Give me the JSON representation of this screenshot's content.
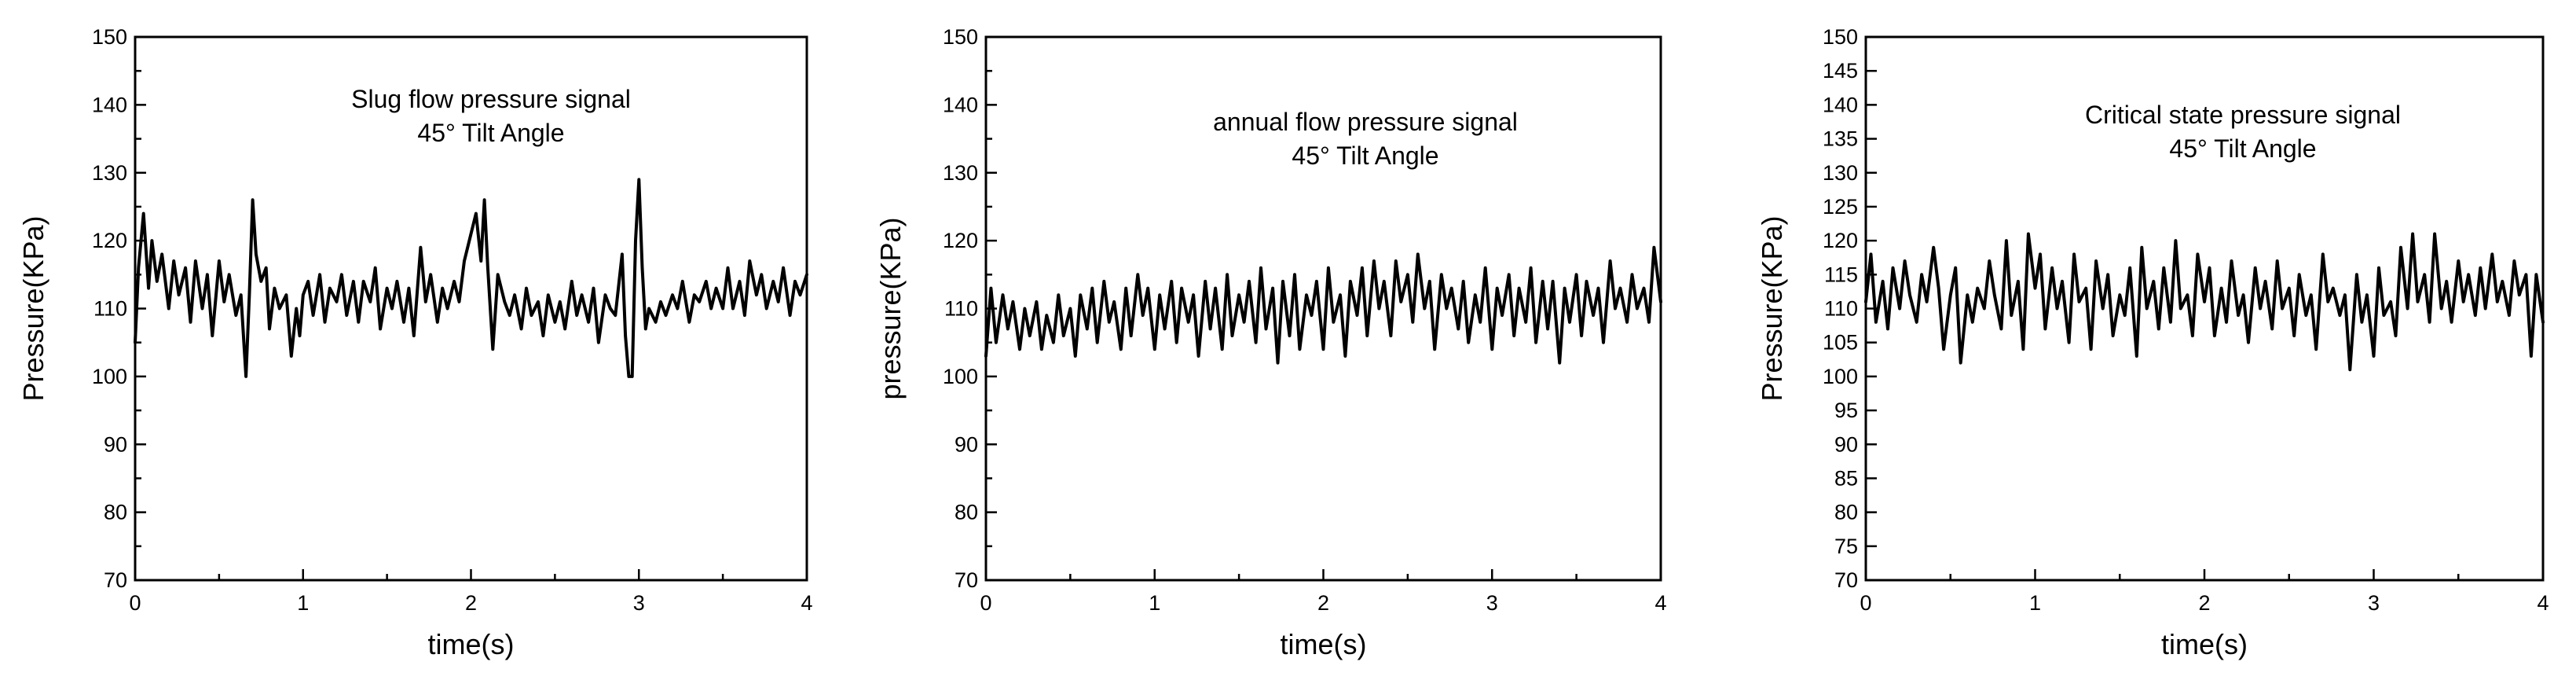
{
  "chart_data": [
    {
      "type": "line",
      "title": "",
      "annotations": [
        "Slug flow pressure signal",
        "45° Tilt Angle"
      ],
      "xlabel": "time(s)",
      "ylabel": "Pressure(KPa)",
      "xlim": [
        0,
        4
      ],
      "ylim": [
        70,
        150
      ],
      "x_ticks": [
        0,
        1,
        2,
        3,
        4
      ],
      "y_ticks": [
        70,
        80,
        90,
        100,
        110,
        120,
        130,
        140,
        150
      ],
      "grid": false,
      "series": [
        {
          "name": "Slug flow pressure signal",
          "x": [
            0,
            0.02,
            0.05,
            0.08,
            0.1,
            0.13,
            0.16,
            0.2,
            0.23,
            0.26,
            0.3,
            0.33,
            0.36,
            0.4,
            0.43,
            0.46,
            0.5,
            0.53,
            0.56,
            0.6,
            0.63,
            0.66,
            0.68,
            0.7,
            0.72,
            0.75,
            0.78,
            0.8,
            0.83,
            0.86,
            0.9,
            0.93,
            0.96,
            0.98,
            1.0,
            1.03,
            1.06,
            1.1,
            1.13,
            1.16,
            1.2,
            1.23,
            1.26,
            1.3,
            1.33,
            1.36,
            1.4,
            1.43,
            1.46,
            1.5,
            1.53,
            1.56,
            1.6,
            1.63,
            1.66,
            1.7,
            1.73,
            1.76,
            1.8,
            1.83,
            1.86,
            1.9,
            1.93,
            1.96,
            2.0,
            2.03,
            2.06,
            2.08,
            2.1,
            2.13,
            2.16,
            2.2,
            2.23,
            2.26,
            2.3,
            2.33,
            2.36,
            2.4,
            2.43,
            2.46,
            2.5,
            2.53,
            2.56,
            2.6,
            2.63,
            2.66,
            2.7,
            2.73,
            2.76,
            2.8,
            2.83,
            2.86,
            2.9,
            2.92,
            2.94,
            2.96,
            2.98,
            3.0,
            3.02,
            3.04,
            3.06,
            3.1,
            3.13,
            3.16,
            3.2,
            3.23,
            3.26,
            3.3,
            3.33,
            3.36,
            3.4,
            3.43,
            3.46,
            3.5,
            3.53,
            3.56,
            3.6,
            3.63,
            3.66,
            3.7,
            3.73,
            3.76,
            3.8,
            3.83,
            3.86,
            3.9,
            3.93,
            3.96,
            4.0
          ],
          "values": [
            105,
            116,
            124,
            113,
            120,
            114,
            118,
            110,
            117,
            112,
            116,
            108,
            117,
            110,
            115,
            106,
            117,
            111,
            115,
            109,
            112,
            100,
            112,
            126,
            118,
            114,
            116,
            107,
            113,
            110,
            112,
            103,
            110,
            106,
            112,
            114,
            109,
            115,
            108,
            113,
            111,
            115,
            109,
            114,
            108,
            114,
            111,
            116,
            107,
            113,
            110,
            114,
            108,
            113,
            106,
            119,
            111,
            115,
            108,
            113,
            110,
            114,
            111,
            117,
            121,
            124,
            117,
            126,
            116,
            104,
            115,
            111,
            109,
            112,
            107,
            113,
            109,
            111,
            106,
            112,
            108,
            111,
            107,
            114,
            109,
            112,
            108,
            113,
            105,
            112,
            110,
            109,
            118,
            106,
            100,
            100,
            120,
            129,
            116,
            107,
            110,
            108,
            111,
            109,
            112,
            110,
            114,
            108,
            112,
            111,
            114,
            110,
            113,
            110,
            116,
            110,
            114,
            109,
            117,
            112,
            115,
            110,
            114,
            111,
            116,
            109,
            114,
            112,
            115
          ],
          "color": "#000000"
        }
      ]
    },
    {
      "type": "line",
      "title": "",
      "annotations": [
        "annual flow pressure signal",
        "45° Tilt Angle"
      ],
      "xlabel": "time(s)",
      "ylabel": "pressure(KPa)",
      "xlim": [
        0,
        4
      ],
      "ylim": [
        70,
        150
      ],
      "x_ticks": [
        0,
        1,
        2,
        3,
        4
      ],
      "y_ticks": [
        70,
        80,
        90,
        100,
        110,
        120,
        130,
        140,
        150
      ],
      "grid": false,
      "series": [
        {
          "name": "annual flow pressure signal",
          "x": [
            0,
            0.03,
            0.06,
            0.1,
            0.13,
            0.16,
            0.2,
            0.23,
            0.26,
            0.3,
            0.33,
            0.36,
            0.4,
            0.43,
            0.46,
            0.5,
            0.53,
            0.56,
            0.6,
            0.63,
            0.66,
            0.7,
            0.73,
            0.76,
            0.8,
            0.83,
            0.86,
            0.9,
            0.93,
            0.96,
            1.0,
            1.03,
            1.06,
            1.1,
            1.13,
            1.16,
            1.2,
            1.23,
            1.26,
            1.3,
            1.33,
            1.36,
            1.4,
            1.43,
            1.46,
            1.5,
            1.53,
            1.56,
            1.6,
            1.63,
            1.66,
            1.7,
            1.73,
            1.76,
            1.8,
            1.83,
            1.86,
            1.9,
            1.93,
            1.96,
            2.0,
            2.03,
            2.06,
            2.1,
            2.13,
            2.16,
            2.2,
            2.23,
            2.26,
            2.3,
            2.33,
            2.36,
            2.4,
            2.43,
            2.46,
            2.5,
            2.53,
            2.56,
            2.6,
            2.63,
            2.66,
            2.7,
            2.73,
            2.76,
            2.8,
            2.83,
            2.86,
            2.9,
            2.93,
            2.96,
            3.0,
            3.03,
            3.06,
            3.1,
            3.13,
            3.16,
            3.2,
            3.23,
            3.26,
            3.3,
            3.33,
            3.36,
            3.4,
            3.43,
            3.46,
            3.5,
            3.53,
            3.56,
            3.6,
            3.63,
            3.66,
            3.7,
            3.73,
            3.76,
            3.8,
            3.83,
            3.86,
            3.9,
            3.93,
            3.96,
            4.0
          ],
          "values": [
            103,
            113,
            105,
            112,
            107,
            111,
            104,
            110,
            106,
            111,
            104,
            109,
            105,
            112,
            106,
            110,
            103,
            112,
            107,
            113,
            105,
            114,
            108,
            111,
            104,
            113,
            106,
            115,
            109,
            113,
            104,
            112,
            107,
            114,
            105,
            113,
            108,
            112,
            103,
            114,
            107,
            113,
            104,
            115,
            106,
            112,
            108,
            114,
            105,
            116,
            107,
            113,
            102,
            114,
            106,
            115,
            104,
            112,
            109,
            114,
            104,
            116,
            108,
            112,
            103,
            114,
            109,
            116,
            106,
            117,
            110,
            114,
            106,
            117,
            111,
            115,
            108,
            118,
            110,
            114,
            104,
            115,
            110,
            113,
            107,
            114,
            105,
            112,
            108,
            116,
            104,
            113,
            109,
            115,
            106,
            113,
            108,
            116,
            105,
            114,
            107,
            114,
            102,
            113,
            108,
            115,
            106,
            114,
            109,
            113,
            105,
            117,
            110,
            113,
            108,
            115,
            110,
            113,
            108,
            119,
            111
          ],
          "color": "#000000"
        }
      ]
    },
    {
      "type": "line",
      "title": "",
      "annotations": [
        "Critical  state pressure signal",
        "45° Tilt Angle"
      ],
      "xlabel": "time(s)",
      "ylabel": "Pressure(KPa)",
      "xlim": [
        0,
        4
      ],
      "ylim": [
        70,
        150
      ],
      "x_ticks": [
        0,
        1,
        2,
        3,
        4
      ],
      "y_ticks": [
        70,
        75,
        80,
        85,
        90,
        95,
        100,
        105,
        110,
        115,
        120,
        125,
        130,
        135,
        140,
        145,
        150
      ],
      "grid": false,
      "series": [
        {
          "name": "Critical state pressure signal",
          "x": [
            0,
            0.03,
            0.06,
            0.1,
            0.13,
            0.16,
            0.2,
            0.23,
            0.26,
            0.3,
            0.33,
            0.36,
            0.4,
            0.43,
            0.46,
            0.5,
            0.53,
            0.56,
            0.6,
            0.63,
            0.66,
            0.7,
            0.73,
            0.76,
            0.8,
            0.83,
            0.86,
            0.9,
            0.93,
            0.96,
            1.0,
            1.03,
            1.06,
            1.1,
            1.13,
            1.16,
            1.2,
            1.23,
            1.26,
            1.3,
            1.33,
            1.36,
            1.4,
            1.43,
            1.46,
            1.5,
            1.53,
            1.56,
            1.6,
            1.63,
            1.66,
            1.7,
            1.73,
            1.76,
            1.8,
            1.83,
            1.86,
            1.9,
            1.93,
            1.96,
            2.0,
            2.03,
            2.06,
            2.1,
            2.13,
            2.16,
            2.2,
            2.23,
            2.26,
            2.3,
            2.33,
            2.36,
            2.4,
            2.43,
            2.46,
            2.5,
            2.53,
            2.56,
            2.6,
            2.63,
            2.66,
            2.7,
            2.73,
            2.76,
            2.8,
            2.83,
            2.86,
            2.9,
            2.93,
            2.96,
            3.0,
            3.03,
            3.06,
            3.1,
            3.13,
            3.16,
            3.2,
            3.23,
            3.26,
            3.3,
            3.33,
            3.36,
            3.4,
            3.43,
            3.46,
            3.5,
            3.53,
            3.56,
            3.6,
            3.63,
            3.66,
            3.7,
            3.73,
            3.76,
            3.8,
            3.83,
            3.86,
            3.9,
            3.93,
            3.96,
            4.0
          ],
          "values": [
            111,
            118,
            108,
            114,
            107,
            116,
            110,
            117,
            112,
            108,
            115,
            111,
            119,
            113,
            104,
            112,
            116,
            102,
            112,
            108,
            113,
            110,
            117,
            112,
            107,
            120,
            109,
            114,
            104,
            121,
            113,
            118,
            107,
            116,
            110,
            114,
            105,
            118,
            111,
            113,
            104,
            117,
            110,
            115,
            106,
            112,
            109,
            116,
            103,
            119,
            110,
            114,
            107,
            116,
            108,
            120,
            110,
            112,
            106,
            118,
            111,
            116,
            106,
            113,
            108,
            117,
            109,
            112,
            105,
            116,
            110,
            114,
            107,
            117,
            110,
            113,
            106,
            115,
            109,
            112,
            104,
            118,
            111,
            113,
            109,
            112,
            101,
            115,
            108,
            112,
            103,
            116,
            109,
            111,
            106,
            119,
            110,
            121,
            111,
            115,
            108,
            121,
            110,
            114,
            108,
            117,
            111,
            115,
            109,
            116,
            110,
            118,
            111,
            114,
            109,
            117,
            112,
            115,
            103,
            115,
            108
          ],
          "color": "#000000"
        }
      ]
    }
  ]
}
